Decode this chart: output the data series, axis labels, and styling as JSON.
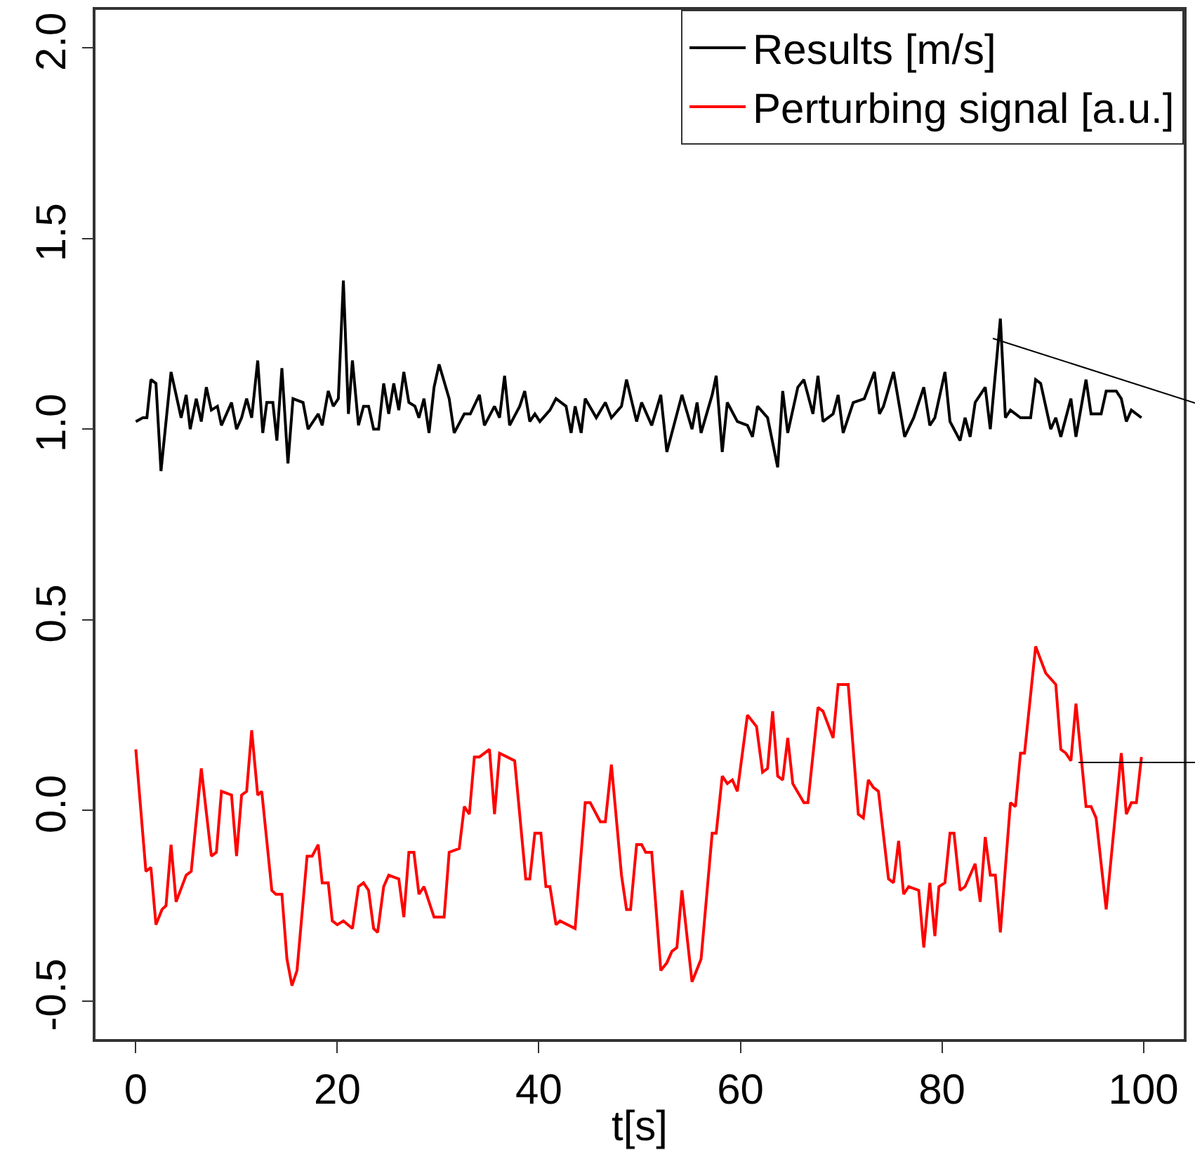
{
  "chart_data": {
    "type": "line",
    "xlabel": "t[s]",
    "xlim": [
      -4,
      104
    ],
    "xticks": [
      0,
      20,
      40,
      60,
      80,
      100
    ],
    "ylim": [
      -0.6,
      2.1
    ],
    "yticks": [
      -0.5,
      {
        "value": 0,
        "label": "0.0"
      },
      0.5,
      {
        "value": 1,
        "label": "1.0"
      },
      1.5,
      {
        "value": 2,
        "label": "2.0"
      }
    ],
    "grid": false,
    "legend": "top right",
    "line_style": "solid",
    "series": [
      {
        "name": "Results [m/s]",
        "color": "#000000",
        "x": [
          0,
          0.7,
          1.1,
          1.5,
          2.0,
          2.5,
          3.5,
          4.5,
          5.0,
          5.4,
          6.0,
          6.5,
          7.0,
          7.5,
          8.1,
          8.5,
          9.5,
          10.0,
          10.5,
          11.0,
          11.5,
          12.1,
          12.6,
          13.0,
          13.6,
          14.0,
          14.5,
          15.1,
          15.6,
          16.6,
          17.1,
          18.1,
          18.5,
          19.1,
          19.6,
          20.1,
          20.6,
          21.1,
          21.5,
          22.1,
          22.6,
          23.1,
          23.6,
          24.1,
          24.6,
          25.1,
          25.6,
          26.1,
          26.6,
          27.1,
          27.7,
          28.1,
          28.6,
          29.1,
          29.6,
          30.1,
          31.1,
          31.6,
          32.6,
          33.2,
          34.1,
          34.6,
          35.6,
          36.1,
          36.6,
          37.1,
          38.1,
          38.6,
          39.1,
          39.6,
          40.1,
          41.1,
          41.7,
          42.7,
          43.2,
          43.6,
          44.2,
          44.6,
          45.7,
          46.6,
          47.2,
          48.2,
          48.7,
          49.7,
          50.2,
          51.2,
          52.1,
          52.7,
          54.2,
          55.2,
          55.7,
          56.1,
          57.2,
          57.6,
          58.2,
          58.7,
          59.7,
          60.7,
          61.2,
          61.7,
          62.7,
          63.7,
          64.2,
          64.7,
          65.7,
          66.3,
          67.2,
          67.7,
          68.2,
          69.2,
          69.7,
          70.2,
          71.2,
          72.3,
          73.3,
          73.8,
          74.2,
          75.2,
          76.3,
          77.2,
          78.2,
          78.8,
          79.3,
          80.3,
          80.8,
          81.8,
          82.3,
          82.8,
          83.3,
          84.3,
          84.8,
          85.8,
          86.3,
          86.8,
          87.8,
          88.8,
          89.3,
          89.8,
          90.8,
          91.3,
          91.8,
          92.8,
          93.3,
          94.3,
          94.8,
          95.8,
          96.3,
          97.3,
          97.8,
          98.3,
          98.8,
          99.8
        ],
        "values": [
          1.02,
          1.03,
          1.03,
          1.13,
          1.12,
          0.89,
          1.15,
          1.03,
          1.09,
          1.0,
          1.08,
          1.02,
          1.11,
          1.05,
          1.06,
          1.01,
          1.07,
          1.0,
          1.03,
          1.08,
          1.03,
          1.18,
          0.99,
          1.07,
          1.07,
          0.97,
          1.16,
          0.91,
          1.08,
          1.07,
          1.0,
          1.04,
          1.01,
          1.1,
          1.06,
          1.08,
          1.39,
          1.04,
          1.18,
          1.01,
          1.06,
          1.06,
          1.0,
          1.0,
          1.12,
          1.04,
          1.12,
          1.05,
          1.15,
          1.07,
          1.06,
          1.03,
          1.08,
          0.99,
          1.11,
          1.17,
          1.08,
          0.99,
          1.04,
          1.04,
          1.09,
          1.01,
          1.06,
          1.03,
          1.14,
          1.01,
          1.06,
          1.1,
          1.02,
          1.04,
          1.02,
          1.05,
          1.08,
          1.06,
          0.99,
          1.06,
          0.99,
          1.08,
          1.03,
          1.07,
          1.03,
          1.06,
          1.13,
          1.02,
          1.07,
          1.01,
          1.09,
          0.94,
          1.09,
          1.0,
          1.07,
          0.99,
          1.09,
          1.14,
          0.94,
          1.07,
          1.02,
          1.01,
          0.98,
          1.06,
          1.03,
          0.9,
          1.1,
          0.99,
          1.11,
          1.13,
          1.04,
          1.14,
          1.02,
          1.04,
          1.09,
          0.99,
          1.07,
          1.08,
          1.15,
          1.04,
          1.06,
          1.15,
          0.98,
          1.03,
          1.11,
          1.01,
          1.03,
          1.15,
          1.02,
          0.97,
          1.03,
          0.98,
          1.07,
          1.11,
          1.0,
          1.29,
          1.03,
          1.05,
          1.03,
          1.03,
          1.13,
          1.12,
          1.0,
          1.03,
          0.98,
          1.08,
          0.98,
          1.13,
          1.04,
          1.04,
          1.1,
          1.1,
          1.08,
          1.02,
          1.05,
          1.03
        ]
      },
      {
        "name": "Perturbing signal [a.u.]",
        "color": "#ff0000",
        "x": [
          0,
          1.0,
          1.5,
          2.0,
          2.6,
          3.0,
          3.5,
          4.0,
          5.0,
          5.5,
          6.5,
          7.5,
          8.0,
          8.5,
          9.5,
          10.0,
          10.5,
          11.0,
          11.5,
          12.1,
          12.5,
          13.0,
          13.5,
          13.9,
          14.5,
          15.0,
          15.5,
          16.0,
          17.0,
          17.5,
          18.1,
          18.5,
          19.1,
          19.5,
          20.0,
          20.6,
          21.5,
          22.1,
          22.6,
          23.1,
          23.6,
          24.0,
          24.6,
          25.1,
          26.1,
          26.6,
          27.1,
          27.6,
          28.1,
          28.6,
          29.6,
          30.6,
          31.1,
          32.1,
          32.6,
          33.1,
          33.6,
          34.1,
          35.1,
          35.6,
          36.1,
          37.6,
          38.7,
          39.1,
          39.6,
          40.2,
          40.7,
          41.1,
          41.7,
          42.1,
          43.6,
          44.6,
          45.1,
          46.1,
          46.6,
          47.2,
          48.2,
          48.7,
          49.1,
          49.7,
          50.2,
          50.6,
          51.2,
          52.1,
          52.7,
          53.2,
          53.7,
          54.2,
          55.2,
          56.1,
          57.2,
          57.6,
          58.2,
          58.7,
          59.2,
          59.7,
          60.7,
          61.6,
          62.2,
          62.7,
          63.2,
          63.7,
          64.2,
          64.7,
          65.2,
          66.3,
          66.7,
          67.7,
          68.2,
          69.2,
          69.7,
          70.7,
          71.7,
          72.2,
          72.7,
          73.2,
          73.7,
          74.7,
          75.2,
          75.7,
          76.2,
          76.7,
          77.7,
          78.2,
          78.8,
          79.3,
          79.7,
          80.3,
          80.8,
          81.2,
          81.8,
          82.3,
          83.3,
          83.8,
          84.3,
          84.8,
          85.3,
          85.8,
          86.8,
          87.3,
          87.8,
          88.2,
          89.3,
          90.3,
          91.3,
          91.8,
          92.3,
          92.8,
          93.3,
          94.3,
          94.8,
          95.3,
          96.3,
          97.8,
          98.3,
          98.8,
          99.3,
          99.8
        ],
        "values": [
          0.16,
          -0.16,
          -0.15,
          -0.3,
          -0.26,
          -0.25,
          -0.09,
          -0.24,
          -0.17,
          -0.16,
          0.11,
          -0.12,
          -0.11,
          0.05,
          0.04,
          -0.12,
          0.04,
          0.05,
          0.21,
          0.04,
          0.05,
          -0.08,
          -0.21,
          -0.22,
          -0.22,
          -0.39,
          -0.46,
          -0.42,
          -0.12,
          -0.12,
          -0.09,
          -0.19,
          -0.19,
          -0.29,
          -0.3,
          -0.29,
          -0.31,
          -0.2,
          -0.19,
          -0.21,
          -0.31,
          -0.32,
          -0.2,
          -0.17,
          -0.18,
          -0.28,
          -0.11,
          -0.11,
          -0.22,
          -0.2,
          -0.28,
          -0.28,
          -0.11,
          -0.1,
          0.01,
          -0.01,
          0.14,
          0.14,
          0.16,
          -0.01,
          0.15,
          0.13,
          -0.18,
          -0.18,
          -0.06,
          -0.06,
          -0.2,
          -0.2,
          -0.3,
          -0.29,
          -0.31,
          0.02,
          0.02,
          -0.03,
          -0.03,
          0.12,
          -0.17,
          -0.26,
          -0.26,
          -0.09,
          -0.09,
          -0.11,
          -0.11,
          -0.42,
          -0.4,
          -0.37,
          -0.36,
          -0.21,
          -0.45,
          -0.39,
          -0.06,
          -0.06,
          0.09,
          0.07,
          0.08,
          0.05,
          0.25,
          0.22,
          0.1,
          0.11,
          0.26,
          0.09,
          0.08,
          0.19,
          0.07,
          0.02,
          0.02,
          0.27,
          0.26,
          0.19,
          0.33,
          0.33,
          -0.01,
          -0.02,
          0.08,
          0.06,
          0.05,
          -0.18,
          -0.19,
          -0.08,
          -0.22,
          -0.2,
          -0.21,
          -0.36,
          -0.19,
          -0.33,
          -0.2,
          -0.19,
          -0.06,
          -0.06,
          -0.21,
          -0.2,
          -0.14,
          -0.24,
          -0.07,
          -0.17,
          -0.17,
          -0.32,
          0.02,
          0.01,
          0.15,
          0.15,
          0.43,
          0.36,
          0.33,
          0.16,
          0.15,
          0.13,
          0.28,
          0.01,
          0.01,
          -0.02,
          -0.26,
          0.15,
          -0.01,
          0.02,
          0.02,
          0.14
        ]
      }
    ]
  }
}
